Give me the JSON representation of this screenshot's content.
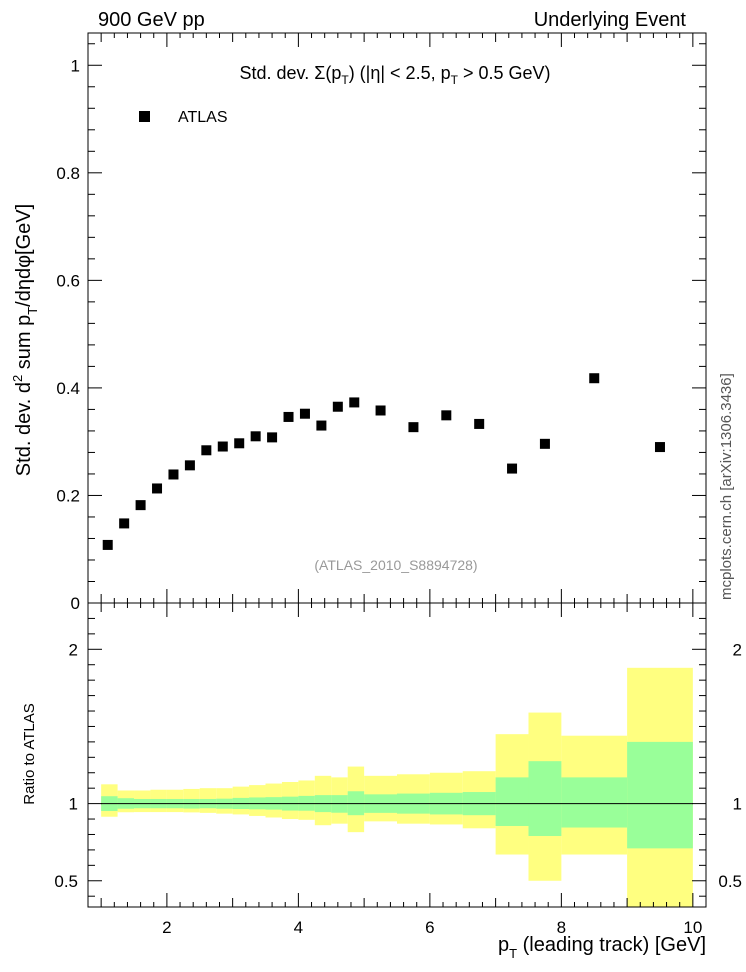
{
  "header": {
    "left": "900 GeV pp",
    "right": "Underlying Event",
    "side_note": "mcplots.cern.ch [arXiv:1306.3436]"
  },
  "chart_data": [
    {
      "type": "scatter",
      "panel": "main",
      "title": "Std. dev. Σ(p_T) (|η| < 2.5, p_T > 0.5 GeV)",
      "ylabel": "Std. dev. d² sum p_T/dηdφ[GeV]",
      "xlim": [
        0.8,
        10.2
      ],
      "ylim": [
        0,
        1.06
      ],
      "yticks": [
        "0",
        "0.2",
        "0.4",
        "0.6",
        "0.8",
        "1"
      ],
      "legend": "top-left",
      "watermark": "(ATLAS_2010_S8894728)",
      "series": [
        {
          "name": "ATLAS",
          "color": "#000000",
          "x": [
            1.1,
            1.35,
            1.6,
            1.85,
            2.1,
            2.35,
            2.6,
            2.85,
            3.1,
            3.35,
            3.6,
            3.85,
            4.1,
            4.35,
            4.6,
            4.85,
            5.25,
            5.75,
            6.25,
            6.75,
            7.25,
            7.75,
            8.5,
            9.5
          ],
          "y": [
            0.108,
            0.148,
            0.182,
            0.213,
            0.239,
            0.256,
            0.284,
            0.291,
            0.297,
            0.31,
            0.308,
            0.346,
            0.352,
            0.33,
            0.365,
            0.373,
            0.358,
            0.327,
            0.349,
            0.333,
            0.25,
            0.296,
            0.418,
            0.29
          ]
        }
      ]
    },
    {
      "type": "area",
      "panel": "ratio",
      "ylabel": "Ratio to ATLAS",
      "xlabel": "p_T (leading track) [GeV]",
      "xlim": [
        0.8,
        10.2
      ],
      "ylim": [
        0.33,
        2.3
      ],
      "xticks": [
        "2",
        "4",
        "6",
        "8",
        "10"
      ],
      "yticks": [
        "0.5",
        "1",
        "2"
      ],
      "bin_edges": [
        1.0,
        1.25,
        1.5,
        1.75,
        2.0,
        2.25,
        2.5,
        2.75,
        3.0,
        3.25,
        3.5,
        3.75,
        4.0,
        4.25,
        4.5,
        4.75,
        5.0,
        5.5,
        6.0,
        6.5,
        7.0,
        7.5,
        8.0,
        9.0,
        10.0
      ],
      "stat_band": {
        "name": "stat",
        "color": "#99ff99",
        "lo": [
          0.952,
          0.967,
          0.97,
          0.97,
          0.97,
          0.968,
          0.97,
          0.967,
          0.965,
          0.963,
          0.961,
          0.955,
          0.954,
          0.945,
          0.941,
          0.925,
          0.94,
          0.935,
          0.93,
          0.925,
          0.855,
          0.79,
          0.845,
          0.71
        ],
        "hi": [
          1.048,
          1.035,
          1.03,
          1.03,
          1.03,
          1.03,
          1.03,
          1.032,
          1.037,
          1.04,
          1.042,
          1.045,
          1.05,
          1.055,
          1.055,
          1.08,
          1.06,
          1.065,
          1.07,
          1.075,
          1.17,
          1.275,
          1.17,
          1.4
        ]
      },
      "total_band": {
        "name": "stat+syst",
        "color": "#ffff80",
        "lo": [
          0.915,
          0.944,
          0.945,
          0.945,
          0.945,
          0.943,
          0.94,
          0.935,
          0.93,
          0.92,
          0.91,
          0.9,
          0.895,
          0.86,
          0.87,
          0.815,
          0.885,
          0.87,
          0.865,
          0.84,
          0.67,
          0.5,
          0.67,
          0.33
        ],
        "hi": [
          1.125,
          1.085,
          1.085,
          1.09,
          1.09,
          1.095,
          1.1,
          1.1,
          1.11,
          1.12,
          1.13,
          1.14,
          1.15,
          1.18,
          1.17,
          1.24,
          1.18,
          1.19,
          1.2,
          1.21,
          1.45,
          1.59,
          1.44,
          1.88
        ]
      },
      "reference_line": 1.0
    }
  ]
}
